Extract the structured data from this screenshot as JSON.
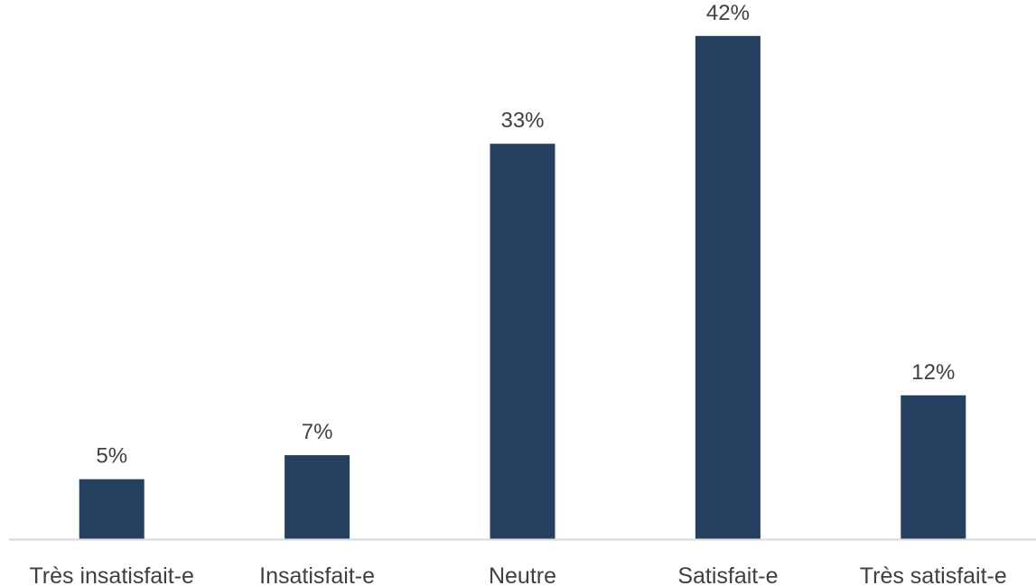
{
  "chart_data": {
    "type": "bar",
    "categories": [
      "Très insatisfait-e",
      "Insatisfait-e",
      "Neutre",
      "Satisfait-e",
      "Très satisfait-e"
    ],
    "values": [
      5,
      7,
      33,
      42,
      12
    ],
    "data_labels": [
      "5%",
      "7%",
      "33%",
      "42%",
      "12%"
    ],
    "title": "",
    "xlabel": "",
    "ylabel": "",
    "ylim": [
      0,
      45
    ],
    "grid": false,
    "legend": "none",
    "bar_color": "#253f5f",
    "axis_color": "#d9d9d9"
  }
}
